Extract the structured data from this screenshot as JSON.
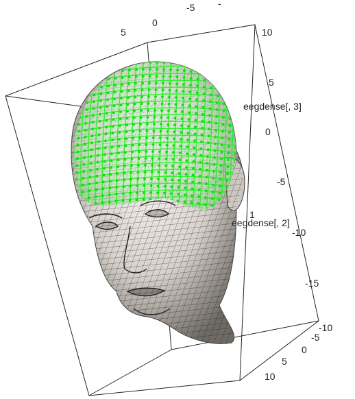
{
  "chart_data": {
    "type": "3d-surface",
    "axes": {
      "x": {
        "label": "",
        "ticks": [
          "-5",
          "0",
          "5",
          "10"
        ]
      },
      "y": {
        "label": "eegdense[, 2]",
        "ticks": [
          "-5",
          "0",
          "5",
          "10"
        ]
      },
      "z": {
        "label": "eegdense[, 3]",
        "ticks": [
          "-15",
          "-10",
          "-5",
          "0",
          "5",
          "10"
        ]
      }
    },
    "extra_tick_labels": [
      "-",
      "-10",
      "1"
    ],
    "colors": {
      "head_surface": "#efe9e4",
      "mesh_lines": "#1a1a1a",
      "electrodes": "#11dd11",
      "box": "#222222"
    }
  }
}
